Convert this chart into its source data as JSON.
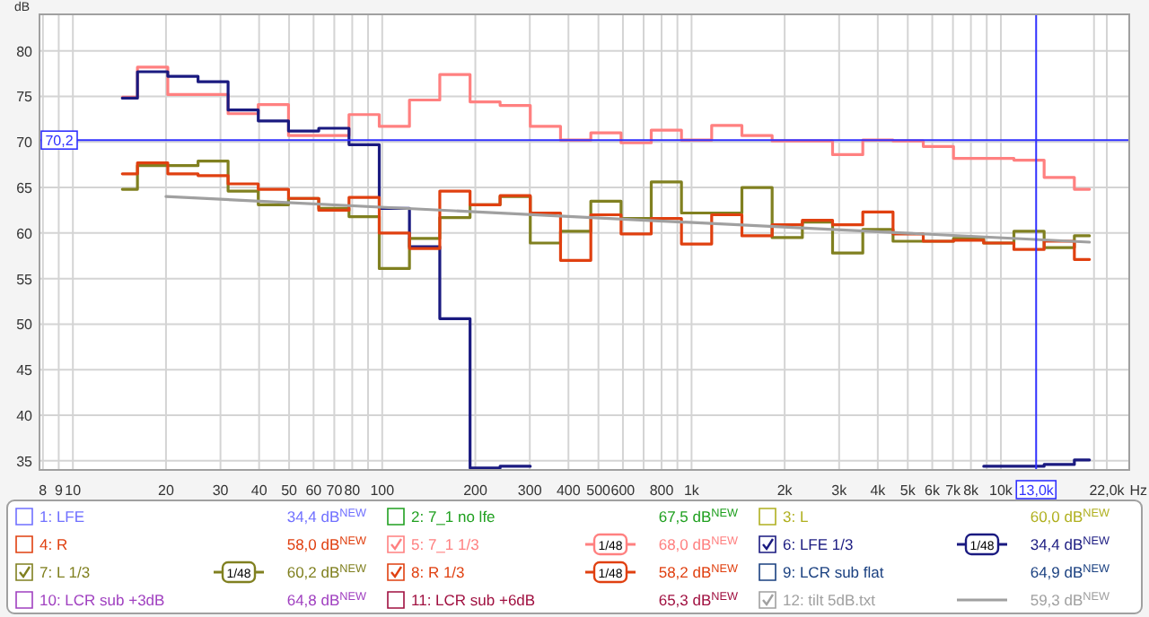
{
  "chart_data": {
    "type": "step",
    "xlabel": "Hz",
    "ylabel": "dB",
    "log": "x",
    "grid": true,
    "legend": "bottom",
    "xlim": [
      7.8,
      26000
    ],
    "ylim": [
      34,
      84
    ],
    "xticks": [
      8,
      9,
      10,
      20,
      30,
      40,
      50,
      60,
      70,
      80,
      {
        "value": 90,
        "label": null
      },
      100,
      200,
      300,
      400,
      500,
      600,
      {
        "value": 700,
        "label": null
      },
      800,
      {
        "value": 900,
        "label": null
      },
      {
        "value": 1000,
        "label": "1k"
      },
      {
        "value": 2000,
        "label": "2k"
      },
      {
        "value": 3000,
        "label": "3k"
      },
      {
        "value": 4000,
        "label": "4k"
      },
      {
        "value": 5000,
        "label": "5k"
      },
      {
        "value": 6000,
        "label": "6k"
      },
      {
        "value": 7000,
        "label": "7k"
      },
      {
        "value": 8000,
        "label": "8k"
      },
      {
        "value": 9000,
        "label": null
      },
      {
        "value": 10000,
        "label": "10k"
      },
      {
        "value": 20000,
        "label": null
      },
      {
        "value": 22000,
        "label": "22,0k"
      }
    ],
    "yticks": [
      35,
      40,
      45,
      50,
      55,
      60,
      65,
      70,
      75,
      80
    ],
    "x": [
      14.45,
      18.1,
      22.7,
      28.4,
      35.5,
      44.5,
      55.7,
      69.8,
      87.4,
      109.5,
      137,
      172,
      215,
      269,
      337,
      422,
      529,
      662,
      829,
      1038,
      1300,
      1628,
      2039,
      2553,
      3197,
      4004,
      5014,
      6280,
      7864,
      9847,
      12330,
      15440,
      19340
    ],
    "ref_lines": [
      {
        "axis": "y",
        "value": 70.2,
        "label": "70,2",
        "color": "#3030ff"
      },
      {
        "axis": "x",
        "value": 13000,
        "label": "13,0k",
        "color": "#3030ff"
      }
    ],
    "series": [
      {
        "name": "1: LFE",
        "color": "#7070ff",
        "values": [
          null,
          null,
          null,
          null,
          null,
          null,
          null,
          null,
          null,
          null,
          null,
          null,
          null,
          null,
          null,
          null,
          null,
          null,
          null,
          null,
          null,
          null,
          null,
          null,
          null,
          null,
          null,
          null,
          null,
          null,
          null,
          null,
          null
        ]
      },
      {
        "name": "2: 7_1 no lfe",
        "color": "#20a020",
        "values": [
          null,
          null,
          null,
          null,
          null,
          null,
          null,
          null,
          null,
          null,
          null,
          null,
          null,
          null,
          null,
          null,
          null,
          null,
          null,
          null,
          null,
          null,
          null,
          null,
          null,
          null,
          null,
          null,
          null,
          null,
          null,
          null,
          null
        ]
      },
      {
        "name": "3: L",
        "color": "#b0b020",
        "values": [
          null,
          null,
          null,
          null,
          null,
          null,
          null,
          null,
          null,
          null,
          null,
          null,
          null,
          null,
          null,
          null,
          null,
          null,
          null,
          null,
          null,
          null,
          null,
          null,
          null,
          null,
          null,
          null,
          null,
          null,
          null,
          null,
          null
        ]
      },
      {
        "name": "4: R",
        "color": "#e04010",
        "values": [
          null,
          null,
          null,
          null,
          null,
          null,
          null,
          null,
          null,
          null,
          null,
          null,
          null,
          null,
          null,
          null,
          null,
          null,
          null,
          null,
          null,
          null,
          null,
          null,
          null,
          null,
          null,
          null,
          null,
          null,
          null,
          null,
          null
        ]
      },
      {
        "name": "5: 7_1 1/3",
        "color": "#ff8080",
        "values": [
          74.9,
          78.2,
          75.2,
          75.2,
          73.1,
          74.1,
          70.7,
          70.7,
          73.0,
          71.7,
          74.6,
          77.4,
          74.4,
          74.0,
          71.7,
          70.2,
          71.0,
          69.9,
          71.3,
          70.2,
          71.8,
          70.7,
          70.1,
          70.1,
          68.6,
          70.2,
          70.1,
          69.5,
          68.2,
          68.2,
          68.0,
          66.1,
          64.8
        ]
      },
      {
        "name": "6: LFE 1/3",
        "color": "#1a1a80",
        "values": [
          74.8,
          77.7,
          77.2,
          76.6,
          73.5,
          72.3,
          71.2,
          71.5,
          69.7,
          62.7,
          58.5,
          50.6,
          34.2,
          34.4,
          null,
          null,
          null,
          null,
          null,
          null,
          null,
          null,
          null,
          null,
          null,
          null,
          null,
          null,
          null,
          34.4,
          34.4,
          34.6,
          35.1
        ]
      },
      {
        "name": "7: L 1/3",
        "color": "#808020",
        "values": [
          64.8,
          67.4,
          67.4,
          67.9,
          64.6,
          63.1,
          63.8,
          62.7,
          61.8,
          56.1,
          59.4,
          61.7,
          63.1,
          64.0,
          58.9,
          60.2,
          63.5,
          61.6,
          65.6,
          62.2,
          62.2,
          65.0,
          59.5,
          61.2,
          57.8,
          60.4,
          59.1,
          59.1,
          59.4,
          58.9,
          60.2,
          58.4,
          59.7
        ]
      },
      {
        "name": "8: R 1/3",
        "color": "#e04010",
        "values": [
          66.5,
          67.7,
          66.5,
          66.3,
          65.4,
          64.8,
          63.8,
          62.5,
          63.9,
          60.0,
          58.3,
          64.6,
          63.1,
          64.1,
          62.2,
          57.0,
          62.0,
          59.9,
          61.6,
          58.8,
          62.0,
          59.7,
          60.9,
          61.4,
          60.9,
          62.3,
          59.9,
          59.1,
          59.2,
          58.9,
          58.2,
          59.1,
          57.1
        ]
      },
      {
        "name": "9: LCR sub flat",
        "color": "#1a4080",
        "values": [
          null,
          null,
          null,
          null,
          null,
          null,
          null,
          null,
          null,
          null,
          null,
          null,
          null,
          null,
          null,
          null,
          null,
          null,
          null,
          null,
          null,
          null,
          null,
          null,
          null,
          null,
          null,
          null,
          null,
          null,
          null,
          null,
          null
        ]
      },
      {
        "name": "10: LCR sub +3dB",
        "color": "#a040c0",
        "values": [
          null,
          null,
          null,
          null,
          null,
          null,
          null,
          null,
          null,
          null,
          null,
          null,
          null,
          null,
          null,
          null,
          null,
          null,
          null,
          null,
          null,
          null,
          null,
          null,
          null,
          null,
          null,
          null,
          null,
          null,
          null,
          null,
          null
        ]
      },
      {
        "name": "11: LCR sub +6dB",
        "color": "#a01040",
        "values": [
          null,
          null,
          null,
          null,
          null,
          null,
          null,
          null,
          null,
          null,
          null,
          null,
          null,
          null,
          null,
          null,
          null,
          null,
          null,
          null,
          null,
          null,
          null,
          null,
          null,
          null,
          null,
          null,
          null,
          null,
          null,
          null,
          null
        ]
      },
      {
        "name": "12: tilt 5dB.txt",
        "color": "#a0a0a0",
        "type": "line",
        "x": [
          20,
          19340
        ],
        "values": [
          64.0,
          59.0
        ]
      }
    ],
    "annotations": [
      "34,4 dB$^{NEW}$",
      "67,5 dB$^{NEW}$",
      "60,0 dB$^{NEW}$",
      "58,0 dB$^{NEW}$",
      "68,0 dB$^{NEW}$",
      "34,4 dB$^{NEW}$",
      "60,2 dB$^{NEW}$",
      "58,2 dB$^{NEW}$",
      "64,9 dB$^{NEW}$",
      "64,8 dB$^{NEW}$",
      "65,3 dB$^{NEW}$",
      "59,3 dB$^{NEW}$",
      "1/48"
    ]
  }
}
